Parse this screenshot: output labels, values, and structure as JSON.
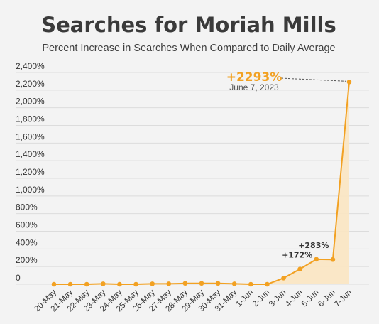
{
  "chart_data": {
    "type": "area",
    "title": "Searches for Moriah Mills",
    "subtitle": "Percent Increase in Searches When Compared to Daily Average",
    "xlabel": "",
    "ylabel": "",
    "ylim": [
      0,
      2400
    ],
    "y_ticks": [
      {
        "value": 0,
        "label": "0"
      },
      {
        "value": 200,
        "label": "200%"
      },
      {
        "value": 400,
        "label": "400%"
      },
      {
        "value": 600,
        "label": "600%"
      },
      {
        "value": 800,
        "label": "800%"
      },
      {
        "value": 1000,
        "label": "1,000%"
      },
      {
        "value": 1200,
        "label": "1,200%"
      },
      {
        "value": 1400,
        "label": "1,400%"
      },
      {
        "value": 1600,
        "label": "1,600%"
      },
      {
        "value": 1800,
        "label": "1,800%"
      },
      {
        "value": 2000,
        "label": "2,000%"
      },
      {
        "value": 2200,
        "label": "2,200%"
      },
      {
        "value": 2400,
        "label": "2,400%"
      }
    ],
    "categories": [
      "20-May",
      "21-May",
      "22-May",
      "23-May",
      "24-May",
      "25-May",
      "26-May",
      "27-May",
      "28-May",
      "29-May",
      "30-May",
      "31-May",
      "1-Jun",
      "2-Jun",
      "3-Jun",
      "4-Jun",
      "5-Jun",
      "6-Jun",
      "7-Jun"
    ],
    "values": [
      0,
      0,
      0,
      5,
      0,
      0,
      5,
      5,
      10,
      10,
      10,
      5,
      0,
      0,
      70,
      172,
      283,
      280,
      2293
    ],
    "annotations": [
      {
        "index": 15,
        "label": "+172%"
      },
      {
        "index": 16,
        "label": "+283%"
      }
    ],
    "peak": {
      "index": 18,
      "label": "+2293%",
      "date": "June 7, 2023"
    },
    "colors": {
      "line": "#f2a122",
      "fill": "#fbe6c2",
      "grid": "#dcdcdc"
    },
    "grid": true,
    "legend": "none"
  }
}
